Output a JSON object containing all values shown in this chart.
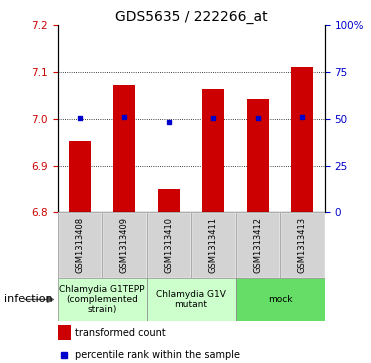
{
  "title": "GDS5635 / 222266_at",
  "samples": [
    "GSM1313408",
    "GSM1313409",
    "GSM1313410",
    "GSM1313411",
    "GSM1313412",
    "GSM1313413"
  ],
  "bar_tops": [
    6.952,
    7.072,
    6.851,
    7.063,
    7.043,
    7.112
  ],
  "bar_bottom": 6.8,
  "blue_dots": [
    7.001,
    7.003,
    6.994,
    7.002,
    7.001,
    7.003
  ],
  "ylim": [
    6.8,
    7.2
  ],
  "yticks_left": [
    6.8,
    6.9,
    7.0,
    7.1,
    7.2
  ],
  "yticks_right": [
    0,
    25,
    50,
    75,
    100
  ],
  "bar_color": "#cc0000",
  "dot_color": "#0000cc",
  "groups": [
    {
      "label": "Chlamydia G1TEPP\n(complemented\nstrain)",
      "start": 0,
      "end": 2,
      "color": "#ccffcc"
    },
    {
      "label": "Chlamydia G1V\nmutant",
      "start": 2,
      "end": 4,
      "color": "#ccffcc"
    },
    {
      "label": "mock",
      "start": 4,
      "end": 6,
      "color": "#66dd66"
    }
  ],
  "infection_label": "infection",
  "legend_bar_label": "transformed count",
  "legend_dot_label": "percentile rank within the sample",
  "bar_width": 0.5,
  "title_fontsize": 10,
  "tick_fontsize": 7.5,
  "sample_fontsize": 6,
  "group_fontsize": 6.5,
  "legend_fontsize": 7
}
